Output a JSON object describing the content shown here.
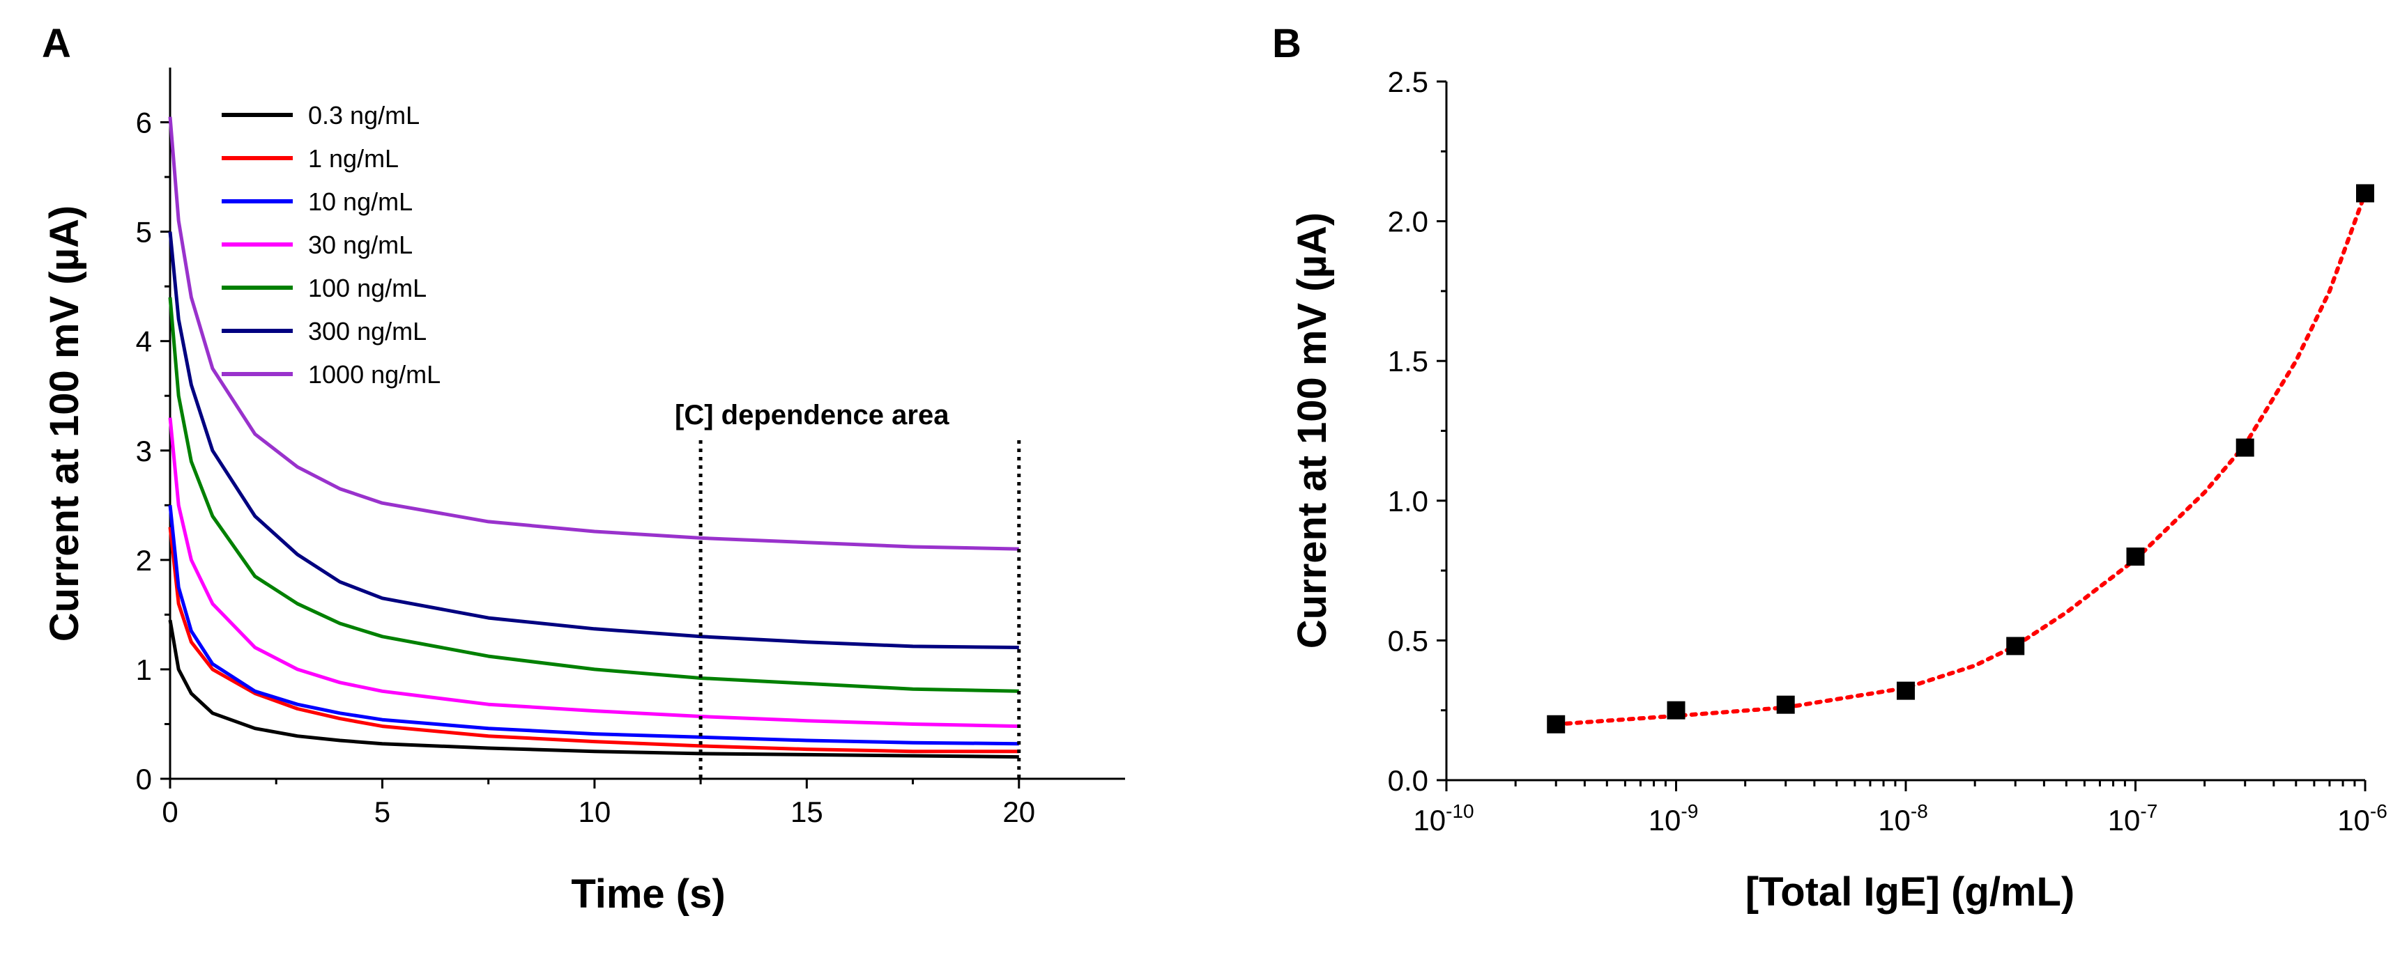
{
  "chart_data": [
    {
      "panel": "A",
      "type": "line",
      "title": "",
      "xlabel": "Time (s)",
      "ylabel": "Current at 100 mV (µA)",
      "xlim": [
        0,
        22.5
      ],
      "ylim": [
        0,
        6.5
      ],
      "xticks": [
        0,
        5,
        10,
        15,
        20
      ],
      "yticks": [
        0,
        1,
        2,
        3,
        4,
        5,
        6
      ],
      "grid": false,
      "legend_position": "top-left",
      "series": [
        {
          "name": "0.3 ng/mL",
          "color": "#000000",
          "x": [
            0,
            0.2,
            0.5,
            1,
            2,
            3,
            4,
            5,
            7.5,
            10,
            12.5,
            15,
            17.5,
            20
          ],
          "y": [
            1.45,
            1.0,
            0.78,
            0.6,
            0.46,
            0.39,
            0.35,
            0.32,
            0.28,
            0.25,
            0.23,
            0.22,
            0.21,
            0.2
          ]
        },
        {
          "name": "1 ng/mL",
          "color": "#ff0000",
          "x": [
            0,
            0.2,
            0.5,
            1,
            2,
            3,
            4,
            5,
            7.5,
            10,
            12.5,
            15,
            17.5,
            20
          ],
          "y": [
            2.3,
            1.6,
            1.25,
            1.0,
            0.78,
            0.64,
            0.55,
            0.48,
            0.39,
            0.34,
            0.3,
            0.27,
            0.25,
            0.25
          ]
        },
        {
          "name": "10 ng/mL",
          "color": "#0000ff",
          "x": [
            0,
            0.2,
            0.5,
            1,
            2,
            3,
            4,
            5,
            7.5,
            10,
            12.5,
            15,
            17.5,
            20
          ],
          "y": [
            2.5,
            1.75,
            1.35,
            1.05,
            0.8,
            0.68,
            0.6,
            0.54,
            0.46,
            0.41,
            0.38,
            0.35,
            0.33,
            0.32
          ]
        },
        {
          "name": "30 ng/mL",
          "color": "#ff00ff",
          "x": [
            0,
            0.2,
            0.5,
            1,
            2,
            3,
            4,
            5,
            7.5,
            10,
            12.5,
            15,
            17.5,
            20
          ],
          "y": [
            3.3,
            2.5,
            2.0,
            1.6,
            1.2,
            1.0,
            0.88,
            0.8,
            0.68,
            0.62,
            0.57,
            0.53,
            0.5,
            0.48
          ]
        },
        {
          "name": "100 ng/mL",
          "color": "#008000",
          "x": [
            0,
            0.2,
            0.5,
            1,
            2,
            3,
            4,
            5,
            7.5,
            10,
            12.5,
            15,
            17.5,
            20
          ],
          "y": [
            4.4,
            3.5,
            2.9,
            2.4,
            1.85,
            1.6,
            1.42,
            1.3,
            1.12,
            1.0,
            0.92,
            0.87,
            0.82,
            0.8
          ]
        },
        {
          "name": "300 ng/mL",
          "color": "#000080",
          "x": [
            0,
            0.2,
            0.5,
            1,
            2,
            3,
            4,
            5,
            7.5,
            10,
            12.5,
            15,
            17.5,
            20
          ],
          "y": [
            5.0,
            4.2,
            3.6,
            3.0,
            2.4,
            2.05,
            1.8,
            1.65,
            1.47,
            1.37,
            1.3,
            1.25,
            1.21,
            1.2
          ]
        },
        {
          "name": "1000 ng/mL",
          "color": "#9932cc",
          "x": [
            0,
            0.2,
            0.5,
            1,
            2,
            3,
            4,
            5,
            7.5,
            10,
            12.5,
            15,
            17.5,
            20
          ],
          "y": [
            6.05,
            5.1,
            4.4,
            3.75,
            3.15,
            2.85,
            2.65,
            2.52,
            2.35,
            2.26,
            2.2,
            2.16,
            2.12,
            2.1
          ]
        }
      ],
      "annotations": [
        {
          "text": "[C] dependence area",
          "x_range": [
            12.5,
            20
          ],
          "style": "dotted vertical lines"
        }
      ]
    },
    {
      "panel": "B",
      "type": "scatter",
      "title": "",
      "xlabel": "[Total IgE] (g/mL)",
      "ylabel": "Current at 100 mV (µA)",
      "xscale": "log",
      "xlim": [
        1e-10,
        1e-06
      ],
      "ylim": [
        0,
        2.5
      ],
      "xtick_labels": [
        {
          "base": "10",
          "exp": "-10"
        },
        {
          "base": "10",
          "exp": "-9"
        },
        {
          "base": "10",
          "exp": "-8"
        },
        {
          "base": "10",
          "exp": "-7"
        },
        {
          "base": "10",
          "exp": "-6"
        }
      ],
      "ytick_labels": [
        "0.0",
        "0.5",
        "1.0",
        "1.5",
        "2.0",
        "2.5"
      ],
      "grid": false,
      "points": {
        "x": [
          3e-10,
          1e-09,
          3e-09,
          1e-08,
          3e-08,
          1e-07,
          3e-07,
          1e-06
        ],
        "y": [
          0.2,
          0.25,
          0.27,
          0.32,
          0.48,
          0.8,
          1.19,
          2.1
        ],
        "color": "#000000",
        "marker": "square"
      },
      "fit_curve": {
        "color": "#ff0000",
        "style": "dotted",
        "x": [
          3e-10,
          1e-09,
          3e-09,
          1e-08,
          2e-08,
          3e-08,
          5e-08,
          1e-07,
          2e-07,
          3e-07,
          5e-07,
          7e-07,
          1e-06
        ],
        "y": [
          0.2,
          0.23,
          0.26,
          0.33,
          0.41,
          0.48,
          0.6,
          0.79,
          1.03,
          1.2,
          1.5,
          1.75,
          2.1
        ]
      }
    }
  ],
  "labels": {
    "panel_a": "A",
    "panel_b": "B"
  },
  "colors": {
    "axis": "#000000",
    "background": "#ffffff"
  }
}
